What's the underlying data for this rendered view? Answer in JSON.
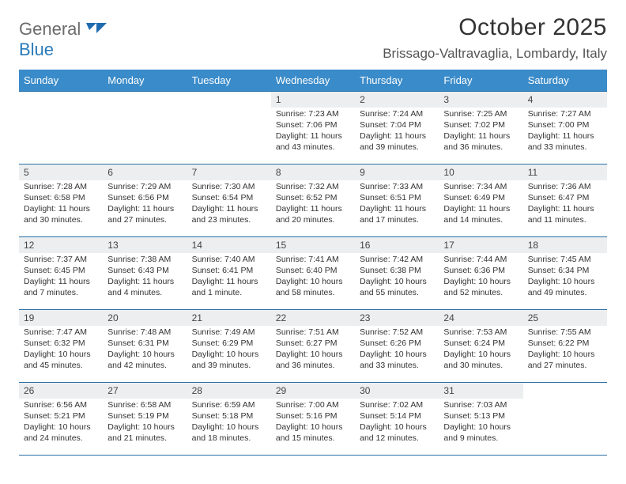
{
  "logo": {
    "word1": "General",
    "word2": "Blue"
  },
  "title": "October 2025",
  "location": "Brissago-Valtravaglia, Lombardy, Italy",
  "theme": {
    "header_bg": "#3a8bc9",
    "header_fg": "#ffffff",
    "rule_color": "#2a6fa5",
    "daynum_bg": "#eceeef",
    "page_bg": "#ffffff",
    "text_color": "#333333",
    "logo_gray": "#6b6b6b",
    "logo_blue": "#2a7ab8",
    "font_family": "Arial",
    "title_fontsize_pt": 22,
    "location_fontsize_pt": 13,
    "header_fontsize_pt": 10,
    "body_fontsize_pt": 8
  },
  "weekdays": [
    "Sunday",
    "Monday",
    "Tuesday",
    "Wednesday",
    "Thursday",
    "Friday",
    "Saturday"
  ],
  "weeks": [
    [
      null,
      null,
      null,
      {
        "n": "1",
        "sr": "Sunrise: 7:23 AM",
        "ss": "Sunset: 7:06 PM",
        "d1": "Daylight: 11 hours",
        "d2": "and 43 minutes."
      },
      {
        "n": "2",
        "sr": "Sunrise: 7:24 AM",
        "ss": "Sunset: 7:04 PM",
        "d1": "Daylight: 11 hours",
        "d2": "and 39 minutes."
      },
      {
        "n": "3",
        "sr": "Sunrise: 7:25 AM",
        "ss": "Sunset: 7:02 PM",
        "d1": "Daylight: 11 hours",
        "d2": "and 36 minutes."
      },
      {
        "n": "4",
        "sr": "Sunrise: 7:27 AM",
        "ss": "Sunset: 7:00 PM",
        "d1": "Daylight: 11 hours",
        "d2": "and 33 minutes."
      }
    ],
    [
      {
        "n": "5",
        "sr": "Sunrise: 7:28 AM",
        "ss": "Sunset: 6:58 PM",
        "d1": "Daylight: 11 hours",
        "d2": "and 30 minutes."
      },
      {
        "n": "6",
        "sr": "Sunrise: 7:29 AM",
        "ss": "Sunset: 6:56 PM",
        "d1": "Daylight: 11 hours",
        "d2": "and 27 minutes."
      },
      {
        "n": "7",
        "sr": "Sunrise: 7:30 AM",
        "ss": "Sunset: 6:54 PM",
        "d1": "Daylight: 11 hours",
        "d2": "and 23 minutes."
      },
      {
        "n": "8",
        "sr": "Sunrise: 7:32 AM",
        "ss": "Sunset: 6:52 PM",
        "d1": "Daylight: 11 hours",
        "d2": "and 20 minutes."
      },
      {
        "n": "9",
        "sr": "Sunrise: 7:33 AM",
        "ss": "Sunset: 6:51 PM",
        "d1": "Daylight: 11 hours",
        "d2": "and 17 minutes."
      },
      {
        "n": "10",
        "sr": "Sunrise: 7:34 AM",
        "ss": "Sunset: 6:49 PM",
        "d1": "Daylight: 11 hours",
        "d2": "and 14 minutes."
      },
      {
        "n": "11",
        "sr": "Sunrise: 7:36 AM",
        "ss": "Sunset: 6:47 PM",
        "d1": "Daylight: 11 hours",
        "d2": "and 11 minutes."
      }
    ],
    [
      {
        "n": "12",
        "sr": "Sunrise: 7:37 AM",
        "ss": "Sunset: 6:45 PM",
        "d1": "Daylight: 11 hours",
        "d2": "and 7 minutes."
      },
      {
        "n": "13",
        "sr": "Sunrise: 7:38 AM",
        "ss": "Sunset: 6:43 PM",
        "d1": "Daylight: 11 hours",
        "d2": "and 4 minutes."
      },
      {
        "n": "14",
        "sr": "Sunrise: 7:40 AM",
        "ss": "Sunset: 6:41 PM",
        "d1": "Daylight: 11 hours",
        "d2": "and 1 minute."
      },
      {
        "n": "15",
        "sr": "Sunrise: 7:41 AM",
        "ss": "Sunset: 6:40 PM",
        "d1": "Daylight: 10 hours",
        "d2": "and 58 minutes."
      },
      {
        "n": "16",
        "sr": "Sunrise: 7:42 AM",
        "ss": "Sunset: 6:38 PM",
        "d1": "Daylight: 10 hours",
        "d2": "and 55 minutes."
      },
      {
        "n": "17",
        "sr": "Sunrise: 7:44 AM",
        "ss": "Sunset: 6:36 PM",
        "d1": "Daylight: 10 hours",
        "d2": "and 52 minutes."
      },
      {
        "n": "18",
        "sr": "Sunrise: 7:45 AM",
        "ss": "Sunset: 6:34 PM",
        "d1": "Daylight: 10 hours",
        "d2": "and 49 minutes."
      }
    ],
    [
      {
        "n": "19",
        "sr": "Sunrise: 7:47 AM",
        "ss": "Sunset: 6:32 PM",
        "d1": "Daylight: 10 hours",
        "d2": "and 45 minutes."
      },
      {
        "n": "20",
        "sr": "Sunrise: 7:48 AM",
        "ss": "Sunset: 6:31 PM",
        "d1": "Daylight: 10 hours",
        "d2": "and 42 minutes."
      },
      {
        "n": "21",
        "sr": "Sunrise: 7:49 AM",
        "ss": "Sunset: 6:29 PM",
        "d1": "Daylight: 10 hours",
        "d2": "and 39 minutes."
      },
      {
        "n": "22",
        "sr": "Sunrise: 7:51 AM",
        "ss": "Sunset: 6:27 PM",
        "d1": "Daylight: 10 hours",
        "d2": "and 36 minutes."
      },
      {
        "n": "23",
        "sr": "Sunrise: 7:52 AM",
        "ss": "Sunset: 6:26 PM",
        "d1": "Daylight: 10 hours",
        "d2": "and 33 minutes."
      },
      {
        "n": "24",
        "sr": "Sunrise: 7:53 AM",
        "ss": "Sunset: 6:24 PM",
        "d1": "Daylight: 10 hours",
        "d2": "and 30 minutes."
      },
      {
        "n": "25",
        "sr": "Sunrise: 7:55 AM",
        "ss": "Sunset: 6:22 PM",
        "d1": "Daylight: 10 hours",
        "d2": "and 27 minutes."
      }
    ],
    [
      {
        "n": "26",
        "sr": "Sunrise: 6:56 AM",
        "ss": "Sunset: 5:21 PM",
        "d1": "Daylight: 10 hours",
        "d2": "and 24 minutes."
      },
      {
        "n": "27",
        "sr": "Sunrise: 6:58 AM",
        "ss": "Sunset: 5:19 PM",
        "d1": "Daylight: 10 hours",
        "d2": "and 21 minutes."
      },
      {
        "n": "28",
        "sr": "Sunrise: 6:59 AM",
        "ss": "Sunset: 5:18 PM",
        "d1": "Daylight: 10 hours",
        "d2": "and 18 minutes."
      },
      {
        "n": "29",
        "sr": "Sunrise: 7:00 AM",
        "ss": "Sunset: 5:16 PM",
        "d1": "Daylight: 10 hours",
        "d2": "and 15 minutes."
      },
      {
        "n": "30",
        "sr": "Sunrise: 7:02 AM",
        "ss": "Sunset: 5:14 PM",
        "d1": "Daylight: 10 hours",
        "d2": "and 12 minutes."
      },
      {
        "n": "31",
        "sr": "Sunrise: 7:03 AM",
        "ss": "Sunset: 5:13 PM",
        "d1": "Daylight: 10 hours",
        "d2": "and 9 minutes."
      },
      null
    ]
  ]
}
